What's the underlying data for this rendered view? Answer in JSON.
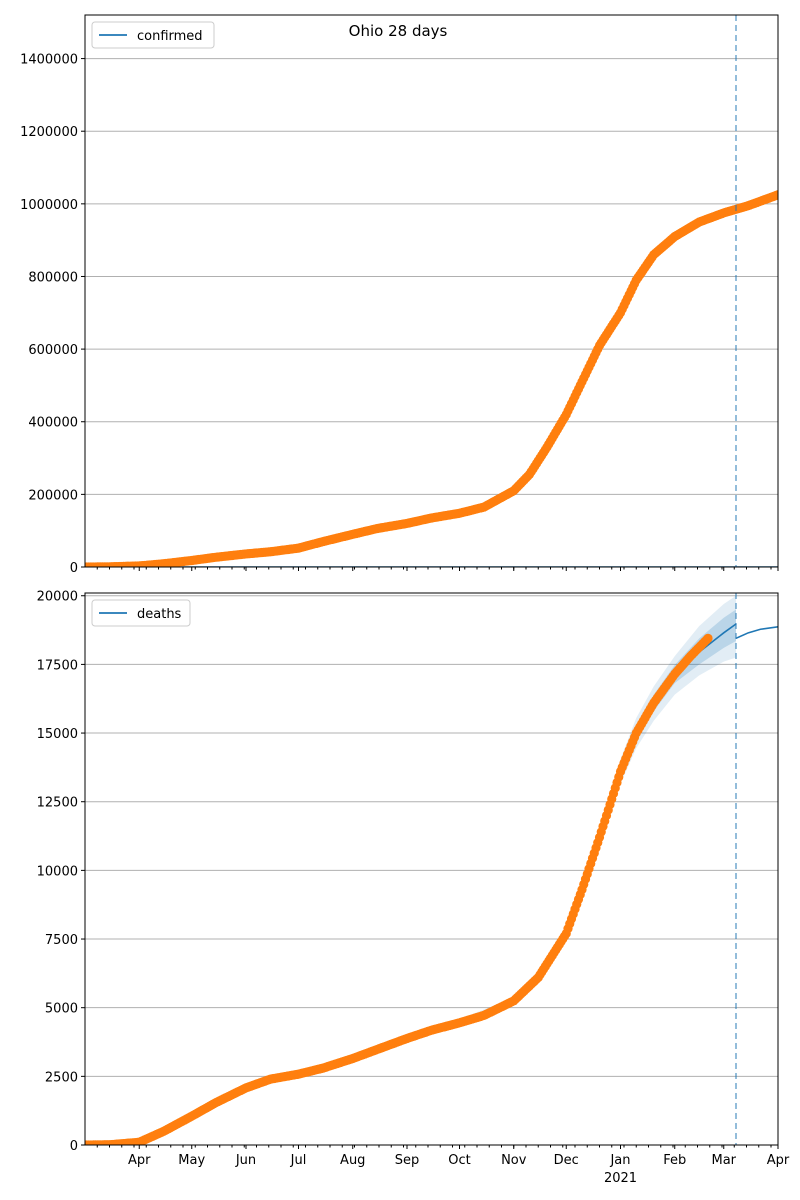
{
  "title": "Ohio 28 days",
  "colors": {
    "observed": "#ff7f0e",
    "model": "#1f77b4",
    "band": "#1f77b4",
    "grid": "#b0b0b0",
    "forecast_line": "#1f77b4"
  },
  "x_axis": {
    "ticks": [
      {
        "date": "2020-04-01",
        "label": "Apr"
      },
      {
        "date": "2020-05-01",
        "label": "May"
      },
      {
        "date": "2020-06-01",
        "label": "Jun"
      },
      {
        "date": "2020-07-01",
        "label": "Jul"
      },
      {
        "date": "2020-08-01",
        "label": "Aug"
      },
      {
        "date": "2020-09-01",
        "label": "Sep"
      },
      {
        "date": "2020-10-01",
        "label": "Oct"
      },
      {
        "date": "2020-11-01",
        "label": "Nov"
      },
      {
        "date": "2020-12-01",
        "label": "Dec"
      },
      {
        "date": "2021-01-01",
        "label": "Jan"
      },
      {
        "date": "2021-02-01",
        "label": "Feb"
      },
      {
        "date": "2021-03-01",
        "label": "Mar"
      },
      {
        "date": "2021-04-01",
        "label": "Apr"
      }
    ],
    "year_label": {
      "date": "2021-01-01",
      "label": "2021"
    }
  },
  "chart_data": [
    {
      "type": "scatter",
      "title": "Ohio 28 days",
      "legend": "confirmed",
      "legend_position": "top-left",
      "grid": "horizontal",
      "xlim": [
        "2020-03-01",
        "2021-04-01"
      ],
      "ylim": [
        0,
        1520000
      ],
      "yticks": [
        0,
        200000,
        400000,
        600000,
        800000,
        1000000,
        1200000,
        1400000
      ],
      "forecast_start": "2021-03-08",
      "series": [
        {
          "name": "confirmed",
          "kind": "line",
          "x": [
            "2020-03-01",
            "2021-04-01"
          ],
          "y": [
            0,
            0
          ]
        },
        {
          "kind": "observed",
          "x": [
            "2020-03-01",
            "2020-03-15",
            "2020-04-01",
            "2020-04-15",
            "2020-05-01",
            "2020-05-15",
            "2020-06-01",
            "2020-06-15",
            "2020-07-01",
            "2020-07-15",
            "2020-08-01",
            "2020-08-15",
            "2020-09-01",
            "2020-09-15",
            "2020-10-01",
            "2020-10-15",
            "2020-11-01",
            "2020-11-10",
            "2020-11-20",
            "2020-12-01",
            "2020-12-10",
            "2020-12-20",
            "2021-01-01",
            "2021-01-10",
            "2021-01-20",
            "2021-02-01",
            "2021-02-15",
            "2021-03-01",
            "2021-03-15",
            "2021-04-01"
          ],
          "y": [
            0,
            500,
            3000,
            9000,
            18000,
            27000,
            36000,
            42000,
            52000,
            70000,
            90000,
            106000,
            120000,
            135000,
            148000,
            165000,
            210000,
            255000,
            330000,
            420000,
            510000,
            610000,
            700000,
            790000,
            860000,
            910000,
            950000,
            975000,
            995000,
            1025000
          ]
        }
      ]
    },
    {
      "type": "scatter",
      "legend": "deaths",
      "legend_position": "top-left",
      "grid": "horizontal",
      "xlim": [
        "2020-03-01",
        "2021-04-01"
      ],
      "ylim": [
        0,
        20100
      ],
      "yticks": [
        0,
        2500,
        5000,
        7500,
        10000,
        12500,
        15000,
        17500,
        20000
      ],
      "forecast_start": "2021-03-08",
      "series": [
        {
          "name": "deaths",
          "kind": "line",
          "x": [
            "2020-03-01",
            "2020-03-15",
            "2020-04-01",
            "2020-04-15",
            "2020-05-01",
            "2020-05-15",
            "2020-06-01",
            "2020-06-15",
            "2020-07-01",
            "2020-07-15",
            "2020-08-01",
            "2020-08-15",
            "2020-09-01",
            "2020-09-15",
            "2020-10-01",
            "2020-10-15",
            "2020-11-01",
            "2020-11-15",
            "2020-12-01",
            "2020-12-10",
            "2020-12-20",
            "2021-01-01",
            "2021-01-10",
            "2021-01-20",
            "2021-02-01",
            "2021-02-15",
            "2021-03-01",
            "2021-03-08"
          ],
          "y": [
            0,
            10,
            100,
            500,
            1050,
            1550,
            2080,
            2400,
            2580,
            2800,
            3150,
            3480,
            3880,
            4180,
            4450,
            4720,
            5250,
            6100,
            7700,
            9300,
            11200,
            13600,
            15000,
            16100,
            17150,
            17950,
            18650,
            18970
          ]
        },
        {
          "kind": "forecast_line",
          "x": [
            "2021-03-08",
            "2021-03-15",
            "2021-03-22",
            "2021-04-01"
          ],
          "y": [
            18450,
            18650,
            18780,
            18870
          ]
        },
        {
          "kind": "band_outer",
          "x": [
            "2020-04-15",
            "2020-06-01",
            "2020-07-01",
            "2020-08-01",
            "2020-09-01",
            "2020-10-01",
            "2020-11-01",
            "2020-11-15",
            "2020-12-01",
            "2020-12-10",
            "2020-12-20",
            "2021-01-01",
            "2021-01-10",
            "2021-01-20",
            "2021-02-01",
            "2021-02-15",
            "2021-03-01",
            "2021-03-08"
          ],
          "upper": [
            520,
            2120,
            2660,
            3260,
            4000,
            4580,
            5370,
            6270,
            7950,
            9600,
            11550,
            14050,
            15550,
            16700,
            17800,
            18900,
            19700,
            20000
          ],
          "lower": [
            480,
            2040,
            2500,
            3040,
            3760,
            4320,
            5130,
            5930,
            7450,
            9000,
            10850,
            13150,
            14450,
            15450,
            16400,
            17100,
            17600,
            17750
          ]
        },
        {
          "kind": "band_inner",
          "x": [
            "2020-04-15",
            "2020-06-01",
            "2020-07-01",
            "2020-08-01",
            "2020-09-01",
            "2020-10-01",
            "2020-11-01",
            "2020-11-15",
            "2020-12-01",
            "2020-12-10",
            "2020-12-20",
            "2021-01-01",
            "2021-01-10",
            "2021-01-20",
            "2021-02-01",
            "2021-02-15",
            "2021-03-01",
            "2021-03-08"
          ],
          "upper": [
            510,
            2100,
            2620,
            3200,
            3940,
            4520,
            5310,
            6190,
            7830,
            9450,
            11380,
            13830,
            15280,
            16400,
            17480,
            18450,
            19200,
            19500
          ],
          "lower": [
            490,
            2060,
            2540,
            3100,
            3820,
            4380,
            5190,
            6010,
            7570,
            9150,
            11020,
            13370,
            14720,
            15800,
            16820,
            17500,
            18100,
            18350
          ]
        },
        {
          "kind": "observed",
          "x": [
            "2020-03-01",
            "2020-03-15",
            "2020-04-01",
            "2020-04-15",
            "2020-05-01",
            "2020-05-15",
            "2020-06-01",
            "2020-06-15",
            "2020-07-01",
            "2020-07-15",
            "2020-08-01",
            "2020-08-15",
            "2020-09-01",
            "2020-09-15",
            "2020-10-01",
            "2020-10-15",
            "2020-11-01",
            "2020-11-15",
            "2020-12-01",
            "2020-12-10",
            "2020-12-20",
            "2021-01-01",
            "2021-01-10",
            "2021-01-20",
            "2021-02-01",
            "2021-02-10",
            "2021-02-20"
          ],
          "y": [
            0,
            10,
            100,
            500,
            1050,
            1550,
            2080,
            2400,
            2580,
            2800,
            3150,
            3480,
            3880,
            4180,
            4450,
            4720,
            5250,
            6100,
            7700,
            9300,
            11200,
            13600,
            15000,
            16100,
            17150,
            17800,
            18450
          ]
        }
      ]
    }
  ]
}
